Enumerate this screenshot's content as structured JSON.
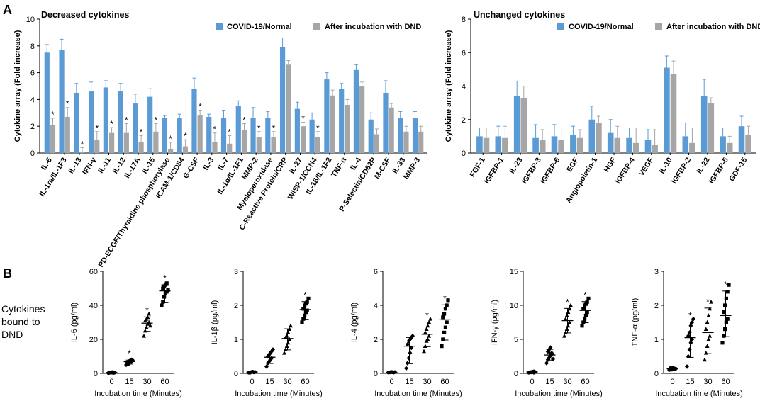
{
  "panel_labels": {
    "a": "A",
    "b": "B"
  },
  "colors": {
    "blue": "#5B9BD5",
    "gray": "#A6A6A6",
    "axis": "#000000"
  },
  "chart_data": [
    {
      "id": "decreased",
      "type": "bar",
      "title": "Decreased cytokines",
      "ylabel": "Cytokine array (Fold increase)",
      "ylim": [
        0,
        10
      ],
      "yticks": [
        0,
        2,
        4,
        6,
        8,
        10
      ],
      "legend": [
        "COVID-19/Normal",
        "After incubation with DND"
      ],
      "categories": [
        "IL-6",
        "IL-1ra/IL-1F3",
        "IL-13",
        "IFN-γ",
        "IL-11",
        "IL-12",
        "IL-17A",
        "IL-15",
        "PD-ECGF/Thymidine phosphorylase",
        "ICAM-1/CD54",
        "G-CSF",
        "IL-3",
        "IL-7",
        "IL-1α/IL-1F1",
        "MMP-2",
        "Myeloperoxidase",
        "C-Reactive Protein/CRP",
        "IL-27",
        "WISP-1/CCN4",
        "IL-1β/IL-1F2",
        "TNF-α",
        "IL-4",
        "P-Selectin/CD62P",
        "M-CSF",
        "IL-33",
        "MMP-3"
      ],
      "series": [
        {
          "name": "COVID-19/Normal",
          "values": [
            7.5,
            7.7,
            4.5,
            4.6,
            4.9,
            4.6,
            3.7,
            4.2,
            2.6,
            2.6,
            4.8,
            2.7,
            2.6,
            3.5,
            2.6,
            2.6,
            7.9,
            3.3,
            2.5,
            5.5,
            4.8,
            6.2,
            2.5,
            4.5,
            2.6,
            2.6
          ]
        },
        {
          "name": "After incubation with DND",
          "values": [
            2.1,
            2.7,
            0.1,
            1.0,
            1.5,
            1.5,
            0.8,
            1.6,
            0.3,
            0.5,
            2.8,
            0.8,
            0.7,
            1.7,
            1.2,
            1.2,
            6.6,
            2.0,
            1.2,
            4.3,
            3.6,
            5.0,
            1.4,
            3.4,
            1.6,
            1.6
          ]
        }
      ],
      "errors": [
        [
          0.6,
          0.8,
          0.7,
          0.7,
          0.5,
          0.6,
          0.7,
          0.6,
          0.2,
          0.3,
          0.8,
          0.2,
          0.6,
          0.4,
          0.8,
          0.5,
          0.7,
          0.5,
          0.5,
          0.5,
          0.4,
          0.4,
          0.5,
          0.9,
          0.5,
          0.5
        ],
        [
          0.5,
          0.7,
          0.3,
          0.6,
          0.4,
          0.7,
          0.5,
          0.6,
          0.5,
          0.5,
          0.4,
          0.7,
          0.6,
          0.5,
          0.4,
          0.4,
          0.3,
          0.3,
          0.4,
          0.4,
          0.4,
          0.3,
          0.4,
          0.3,
          0.4,
          0.4
        ]
      ],
      "significance": [
        true,
        true,
        true,
        true,
        true,
        true,
        true,
        true,
        true,
        true,
        true,
        true,
        true,
        true,
        true,
        true,
        false,
        true,
        true,
        false,
        false,
        false,
        false,
        false,
        false,
        false
      ],
      "significance_symbol": "*"
    },
    {
      "id": "unchanged",
      "type": "bar",
      "title": "Unchanged cytokines",
      "ylabel": "Cytokine array (Fold increase)",
      "ylim": [
        0,
        8
      ],
      "yticks": [
        0,
        2,
        4,
        6,
        8
      ],
      "legend": [
        "COVID-19/Normal",
        "After incubation with DND"
      ],
      "categories": [
        "FGF-1",
        "IGFBP-1",
        "IL-23",
        "IGFBP-3",
        "IGFBP-6",
        "EGF",
        "Angiopoietin-1",
        "HGF",
        "IGFBP-4",
        "VEGF",
        "IL-10",
        "IGFBP-2",
        "IL-22",
        "IGFBP-5",
        "GDF-15"
      ],
      "series": [
        {
          "name": "COVID-19/Normal",
          "values": [
            1.0,
            1.0,
            3.4,
            0.9,
            1.0,
            1.1,
            2.0,
            1.2,
            0.9,
            0.8,
            5.1,
            1.0,
            3.4,
            1.0,
            1.6
          ]
        },
        {
          "name": "After incubation with DND",
          "values": [
            0.9,
            0.9,
            3.3,
            0.8,
            0.8,
            0.9,
            1.8,
            0.9,
            0.6,
            0.5,
            4.7,
            0.6,
            3.0,
            0.6,
            1.1
          ]
        }
      ],
      "errors": [
        [
          0.5,
          0.6,
          0.9,
          0.8,
          0.7,
          0.5,
          0.8,
          0.8,
          0.6,
          0.6,
          0.7,
          0.8,
          1.0,
          0.5,
          0.6
        ],
        [
          0.6,
          0.7,
          0.7,
          0.6,
          0.7,
          0.5,
          0.4,
          0.7,
          0.9,
          0.9,
          0.8,
          0.9,
          0.3,
          0.4,
          0.5
        ]
      ]
    },
    {
      "id": "il6",
      "type": "scatter",
      "ylabel": "IL-6 (pg/ml)",
      "xlabel": "Incubation time (Minutes)",
      "categories": [
        "0",
        "15",
        "30",
        "60"
      ],
      "yticks": [
        0,
        20,
        40,
        60
      ],
      "ylim": [
        0,
        60
      ],
      "marker": [
        "circle",
        "diamond",
        "triangle",
        "square"
      ],
      "points": [
        [
          0.2,
          0.4,
          0.6,
          0.8,
          0.3,
          0.5,
          0.7,
          0.4,
          0.6,
          0.5
        ],
        [
          5.0,
          6.0,
          7.0,
          7.5,
          8.0,
          6.5,
          5.5,
          7.2,
          6.8,
          7.8
        ],
        [
          22.0,
          25.0,
          27.0,
          29.0,
          30.0,
          31.0,
          32.0,
          33.0,
          35.0,
          28.0
        ],
        [
          40.0,
          42.0,
          45.0,
          47.0,
          48.0,
          50.0,
          51.0,
          52.0,
          53.0,
          49.0
        ]
      ],
      "significance": [
        false,
        true,
        true,
        true
      ],
      "significance_symbol": "*"
    },
    {
      "id": "il1b",
      "type": "scatter",
      "ylabel": "IL-1β (pg/ml)",
      "xlabel": "Incubation time (Minutes)",
      "categories": [
        "0",
        "15",
        "30",
        "60"
      ],
      "yticks": [
        0,
        1,
        2,
        3
      ],
      "ylim": [
        0,
        3
      ],
      "marker": [
        "circle",
        "diamond",
        "triangle",
        "square"
      ],
      "points": [
        [
          0.02,
          0.03,
          0.04,
          0.05,
          0.03,
          0.02,
          0.04,
          0.05,
          0.03,
          0.04
        ],
        [
          0.2,
          0.3,
          0.35,
          0.4,
          0.45,
          0.5,
          0.55,
          0.6,
          0.65,
          0.7
        ],
        [
          0.6,
          0.7,
          0.8,
          0.9,
          1.0,
          1.05,
          1.1,
          1.2,
          1.3,
          1.4
        ],
        [
          1.5,
          1.6,
          1.7,
          1.8,
          1.85,
          1.9,
          2.0,
          2.05,
          2.1,
          2.2
        ]
      ],
      "significance": [
        false,
        false,
        false,
        true
      ],
      "significance_symbol": "*"
    },
    {
      "id": "il4",
      "type": "scatter",
      "ylabel": "IL-4 (pg/ml)",
      "xlabel": "Incubation time (Minutes)",
      "categories": [
        "0",
        "15",
        "30",
        "60"
      ],
      "yticks": [
        0,
        2,
        4,
        6
      ],
      "ylim": [
        0,
        6
      ],
      "marker": [
        "circle",
        "diamond",
        "triangle",
        "square"
      ],
      "points": [
        [
          0.05,
          0.06,
          0.07,
          0.08,
          0.05,
          0.06,
          0.09,
          0.07,
          0.06,
          0.08
        ],
        [
          0.3,
          0.6,
          0.9,
          1.2,
          1.5,
          1.7,
          1.9,
          2.0,
          2.1,
          2.2
        ],
        [
          1.3,
          1.6,
          1.9,
          2.0,
          2.2,
          2.4,
          2.6,
          2.8,
          3.0,
          3.2
        ],
        [
          1.6,
          2.0,
          2.4,
          2.7,
          3.0,
          3.3,
          3.5,
          3.8,
          4.0,
          4.3
        ]
      ],
      "significance": [
        false,
        false,
        true,
        true
      ],
      "significance_symbol": "*"
    },
    {
      "id": "ifng",
      "type": "scatter",
      "ylabel": "IFN-γ (pg/ml)",
      "xlabel": "Incubation time (Minutes)",
      "categories": [
        "0",
        "15",
        "30",
        "60"
      ],
      "yticks": [
        0,
        5,
        10,
        15
      ],
      "ylim": [
        0,
        15
      ],
      "marker": [
        "circle",
        "diamond",
        "triangle",
        "square"
      ],
      "points": [
        [
          0.1,
          0.15,
          0.2,
          0.25,
          0.1,
          0.2,
          0.15,
          0.25,
          0.3,
          0.2
        ],
        [
          1.5,
          2.0,
          2.3,
          2.6,
          3.0,
          3.2,
          3.5,
          3.8,
          2.8,
          2.1
        ],
        [
          5.5,
          6.0,
          6.5,
          7.0,
          7.5,
          8.0,
          8.5,
          9.0,
          9.5,
          10.0
        ],
        [
          7.0,
          7.5,
          8.0,
          8.5,
          9.0,
          9.5,
          10.0,
          10.2,
          10.5,
          11.0
        ]
      ],
      "significance": [
        false,
        false,
        true,
        true
      ],
      "significance_symbol": "*"
    },
    {
      "id": "tnfa",
      "type": "scatter",
      "ylabel": "TNF-α (pg/ml)",
      "xlabel": "Incubation time (Minutes)",
      "categories": [
        "0",
        "15",
        "30",
        "60"
      ],
      "yticks": [
        0,
        1,
        2,
        3
      ],
      "ylim": [
        0,
        3
      ],
      "marker": [
        "circle",
        "diamond",
        "triangle",
        "square"
      ],
      "points": [
        [
          0.1,
          0.12,
          0.14,
          0.15,
          0.13,
          0.16,
          0.11,
          0.17,
          0.12,
          0.14
        ],
        [
          0.2,
          0.5,
          0.7,
          0.9,
          1.0,
          1.1,
          1.2,
          1.4,
          1.5,
          1.6
        ],
        [
          0.4,
          0.6,
          0.8,
          1.0,
          1.1,
          1.3,
          1.5,
          1.7,
          1.9,
          2.1
        ],
        [
          0.9,
          1.1,
          1.3,
          1.5,
          1.6,
          1.8,
          2.0,
          2.2,
          2.4,
          2.6
        ]
      ],
      "significance": [
        false,
        true,
        true,
        true
      ],
      "significance_symbol": "*"
    }
  ],
  "side_label": [
    "Cytokines",
    "bound to",
    "DND"
  ]
}
